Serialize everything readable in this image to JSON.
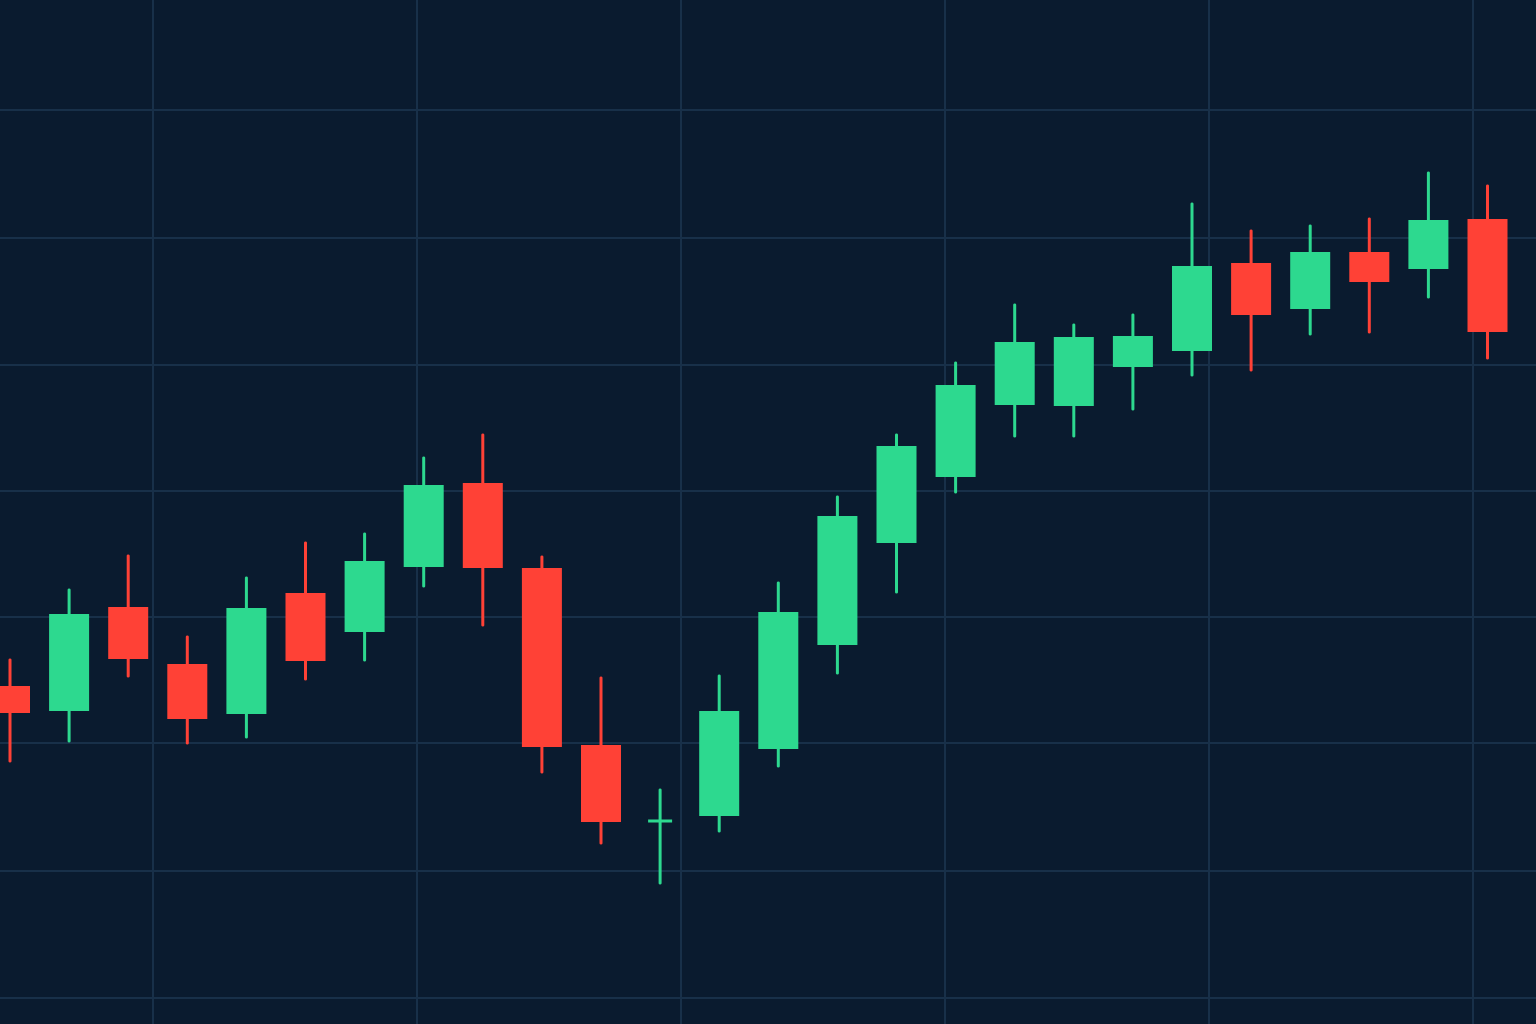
{
  "colors": {
    "background": "#0a1b2f",
    "grid": "#183049",
    "bullish": "#2dd98f",
    "bearish": "#ff4136"
  },
  "chart_data": {
    "type": "candlestick",
    "title": "",
    "xlabel": "",
    "ylabel": "",
    "grid": true,
    "legend": "none",
    "x": [
      1,
      2,
      3,
      4,
      5,
      6,
      7,
      8,
      9,
      10,
      11,
      12,
      13,
      14,
      15,
      16,
      17,
      18,
      19,
      20,
      21,
      22,
      23,
      24,
      25,
      26
    ],
    "ylim": [
      0,
      1024
    ],
    "candles": [
      {
        "x": 1,
        "open": 338,
        "high": 364,
        "low": 263,
        "close": 311
      },
      {
        "x": 2,
        "open": 313,
        "high": 434,
        "low": 283,
        "close": 410
      },
      {
        "x": 3,
        "open": 417,
        "high": 468,
        "low": 348,
        "close": 365
      },
      {
        "x": 4,
        "open": 360,
        "high": 387,
        "low": 281,
        "close": 305
      },
      {
        "x": 5,
        "open": 310,
        "high": 446,
        "low": 287,
        "close": 416
      },
      {
        "x": 6,
        "open": 431,
        "high": 481,
        "low": 345,
        "close": 363
      },
      {
        "x": 7,
        "open": 392,
        "high": 490,
        "low": 364,
        "close": 463
      },
      {
        "x": 8,
        "open": 457,
        "high": 566,
        "low": 438,
        "close": 539
      },
      {
        "x": 9,
        "open": 541,
        "high": 589,
        "low": 399,
        "close": 456
      },
      {
        "x": 10,
        "open": 456,
        "high": 467,
        "low": 252,
        "close": 277
      },
      {
        "x": 11,
        "open": 279,
        "high": 346,
        "low": 181,
        "close": 202
      },
      {
        "x": 12,
        "open": 202,
        "high": 234,
        "low": 141,
        "close": 203
      },
      {
        "x": 13,
        "open": 208,
        "high": 348,
        "low": 193,
        "close": 313
      },
      {
        "x": 14,
        "open": 275,
        "high": 441,
        "low": 258,
        "close": 412
      },
      {
        "x": 15,
        "open": 379,
        "high": 527,
        "low": 351,
        "close": 508
      },
      {
        "x": 16,
        "open": 481,
        "high": 589,
        "low": 432,
        "close": 578
      },
      {
        "x": 17,
        "open": 547,
        "high": 661,
        "low": 532,
        "close": 639
      },
      {
        "x": 18,
        "open": 619,
        "high": 719,
        "low": 588,
        "close": 682
      },
      {
        "x": 19,
        "open": 618,
        "high": 699,
        "low": 588,
        "close": 687
      },
      {
        "x": 20,
        "open": 657,
        "high": 709,
        "low": 615,
        "close": 688
      },
      {
        "x": 21,
        "open": 673,
        "high": 820,
        "low": 649,
        "close": 758
      },
      {
        "x": 22,
        "open": 761,
        "high": 793,
        "low": 654,
        "close": 709
      },
      {
        "x": 23,
        "open": 715,
        "high": 798,
        "low": 690,
        "close": 772
      },
      {
        "x": 24,
        "open": 772,
        "high": 805,
        "low": 692,
        "close": 742
      },
      {
        "x": 25,
        "open": 755,
        "high": 851,
        "low": 727,
        "close": 804
      },
      {
        "x": 26,
        "open": 805,
        "high": 838,
        "low": 666,
        "close": 692
      }
    ]
  }
}
